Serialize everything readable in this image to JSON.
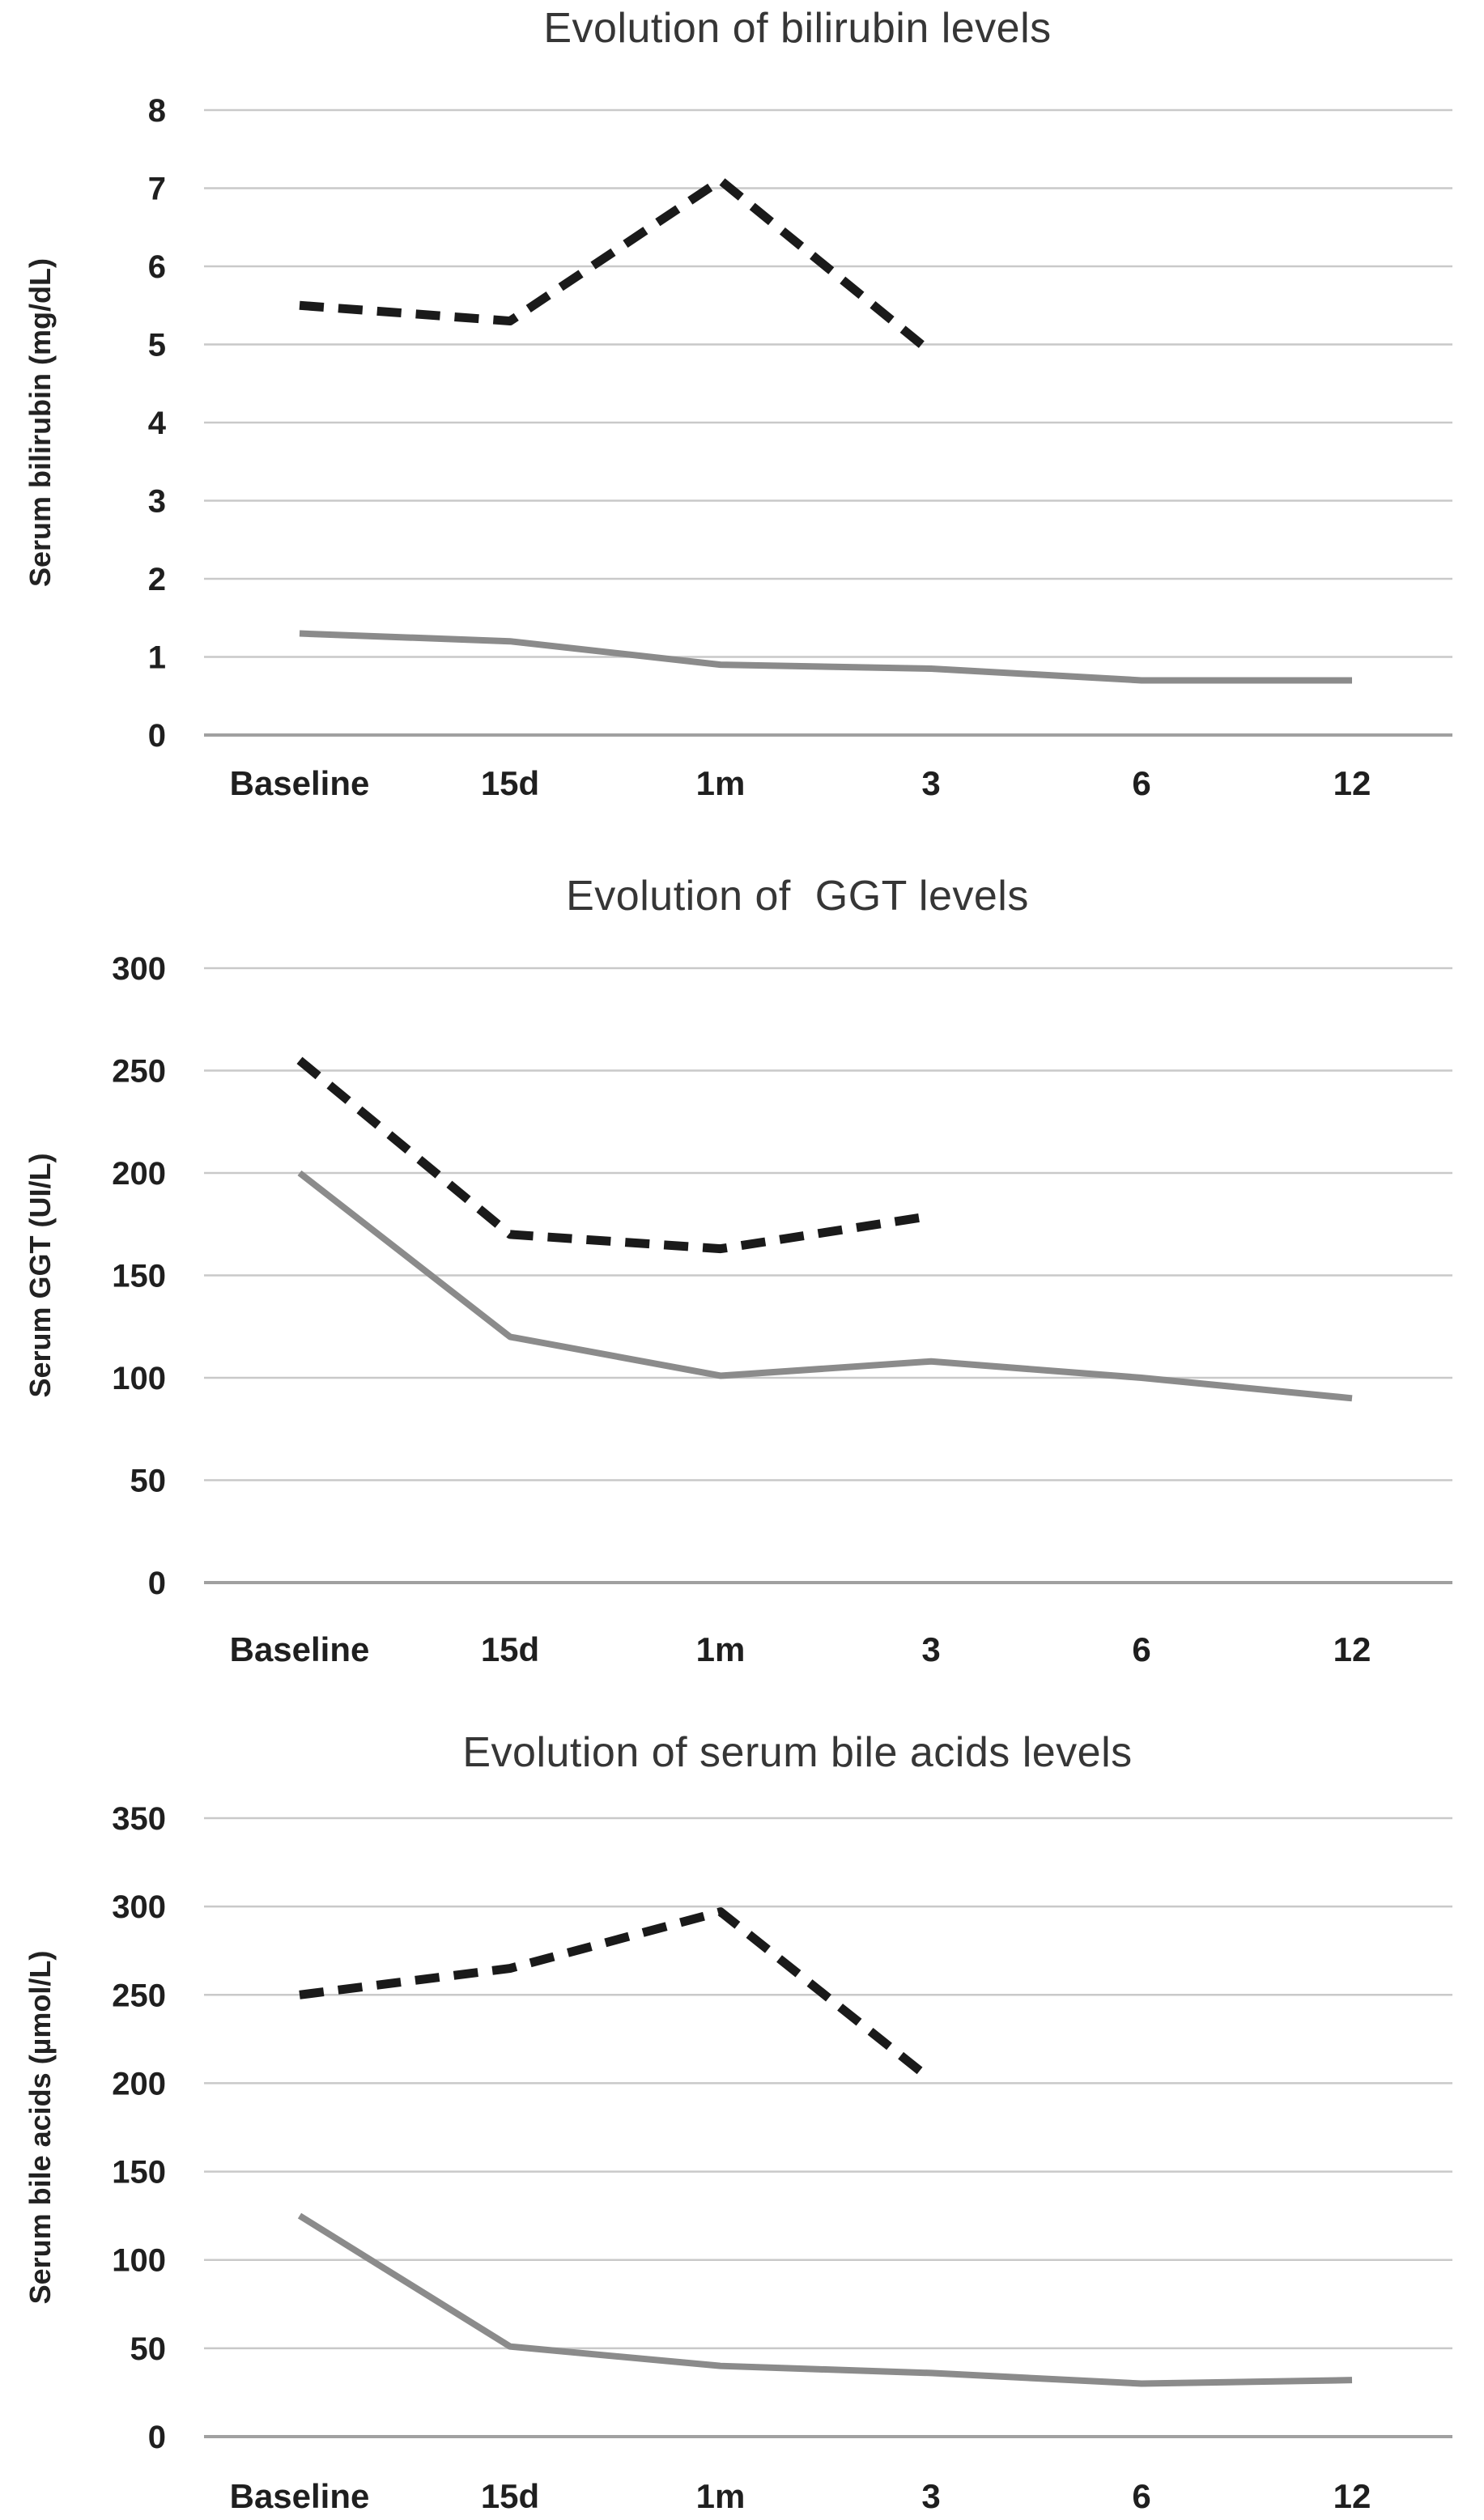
{
  "figure": {
    "background": "#ffffff",
    "description": "Three stacked line charts of lab value evolution over time"
  },
  "x_categories": [
    "Baseline",
    "15d",
    "1m",
    "3",
    "6",
    "12"
  ],
  "chart_data": [
    {
      "type": "line",
      "title": "Evolution of bilirubin levels",
      "xlabel": "",
      "ylabel": "Serum bilirubin (mg/dL)",
      "categories": [
        "Baseline",
        "15d",
        "1m",
        "3",
        "6",
        "12"
      ],
      "ylim": [
        0,
        8
      ],
      "ytick_step": 1,
      "grid": true,
      "legend_position": "none",
      "series": [
        {
          "name": "dashed",
          "line_style": "dashed",
          "color": "#1a1a1a",
          "values": [
            5.5,
            5.3,
            7.1,
            4.9,
            null,
            null
          ]
        },
        {
          "name": "solid",
          "line_style": "solid",
          "color": "#8b8b8b",
          "values": [
            1.3,
            1.2,
            0.9,
            0.85,
            0.7,
            0.7
          ]
        }
      ]
    },
    {
      "type": "line",
      "title": "Evolution of  GGT levels",
      "xlabel": "",
      "ylabel": "Serum GGT (UI/L)",
      "categories": [
        "Baseline",
        "15d",
        "1m",
        "3",
        "6",
        "12"
      ],
      "ylim": [
        0,
        300
      ],
      "ytick_step": 50,
      "grid": true,
      "legend_position": "none",
      "series": [
        {
          "name": "dashed",
          "line_style": "dashed",
          "color": "#1a1a1a",
          "values": [
            255,
            170,
            163,
            179,
            null,
            null
          ]
        },
        {
          "name": "solid",
          "line_style": "solid",
          "color": "#8b8b8b",
          "values": [
            200,
            120,
            101,
            108,
            100,
            90
          ]
        }
      ]
    },
    {
      "type": "line",
      "title": "Evolution of serum bile acids levels",
      "xlabel": "",
      "ylabel": "Serum bile acids (µmol/L)",
      "categories": [
        "Baseline",
        "15d",
        "1m",
        "3",
        "6",
        "12"
      ],
      "ylim": [
        0,
        350
      ],
      "ytick_step": 50,
      "grid": true,
      "legend_position": "none",
      "series": [
        {
          "name": "dashed",
          "line_style": "dashed",
          "color": "#1a1a1a",
          "values": [
            250,
            265,
            297,
            202,
            null,
            null
          ]
        },
        {
          "name": "solid",
          "line_style": "solid",
          "color": "#8b8b8b",
          "values": [
            125,
            51,
            40,
            36,
            30,
            32
          ]
        }
      ]
    }
  ],
  "style": {
    "grid_color": "#c9c9c9",
    "zero_axis_color": "#a0a0a0",
    "dashed_series_color": "#1a1a1a",
    "solid_series_color": "#8b8b8b",
    "title_color": "#363636",
    "tick_text_color": "#1f1f1f"
  }
}
